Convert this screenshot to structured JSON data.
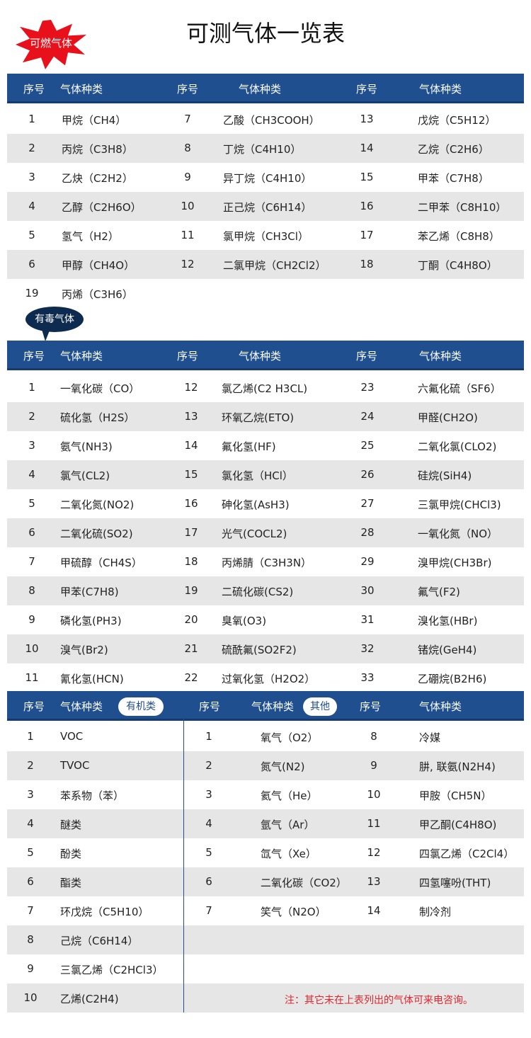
{
  "title": "可测气体一览表",
  "colors": {
    "header": "#1f4f8e",
    "stripe": "#e6e6e6",
    "badge_red": "#e8101a",
    "bubble": "#0d2a4f",
    "note": "#e0262e"
  },
  "header_labels": {
    "num": "序号",
    "name": "气体种类"
  },
  "combustible": {
    "badge": "可燃气体",
    "rows": [
      [
        "1",
        "甲烷（CH4）",
        "7",
        "乙酸（CH3COOH）",
        "13",
        "戊烷（C5H12）"
      ],
      [
        "2",
        "丙烷（C3H8）",
        "8",
        "丁烷（C4H10）",
        "14",
        "乙烷（C2H6）"
      ],
      [
        "3",
        "乙炔（C2H2）",
        "9",
        "异丁烷（C4H10）",
        "15",
        "甲苯（C7H8）"
      ],
      [
        "4",
        "乙醇（C2H6O）",
        "10",
        "正己烷（C6H14）",
        "16",
        "二甲苯（C8H10）"
      ],
      [
        "5",
        "氢气（H2）",
        "11",
        "氯甲烷（CH3Cl）",
        "17",
        "苯乙烯（C8H8）"
      ],
      [
        "6",
        "甲醇（CH4O）",
        "12",
        "二氯甲烷（CH2Cl2）",
        "18",
        "丁酮（C4H8O）"
      ],
      [
        "19",
        "丙烯（C3H6）",
        "",
        "",
        "",
        ""
      ]
    ]
  },
  "toxic": {
    "badge": "有毒气体",
    "rows": [
      [
        "1",
        "一氧化碳（CO）",
        "12",
        "氯乙烯(C2 H3CL)",
        "23",
        "六氟化硫（SF6）"
      ],
      [
        "2",
        "硫化氢（H2S）",
        "13",
        "环氧乙烷(ETO)",
        "24",
        "甲醛(CH2O)"
      ],
      [
        "3",
        "氨气(NH3)",
        "14",
        "氟化氢(HF)",
        "25",
        "二氧化氯(CLO2)"
      ],
      [
        "4",
        "氯气(CL2)",
        "15",
        "氯化氢（HCl）",
        "26",
        "硅烷(SiH4)"
      ],
      [
        "5",
        "二氧化氮(NO2)",
        "16",
        "砷化氢(AsH3)",
        "27",
        "三氯甲烷(CHCl3)"
      ],
      [
        "6",
        "二氧化硫(SO2)",
        "17",
        "光气(COCL2)",
        "28",
        "一氧化氮（NO）"
      ],
      [
        "7",
        "甲硫醇（CH4S）",
        "18",
        "丙烯腈（C3H3N）",
        "29",
        "溴甲烷(CH3Br)"
      ],
      [
        "8",
        "甲苯(C7H8)",
        "19",
        "二硫化碳(CS2)",
        "30",
        "氟气(F2)"
      ],
      [
        "9",
        "磷化氢(PH3)",
        "20",
        "臭氧(O3)",
        "31",
        "溴化氢(HBr)"
      ],
      [
        "10",
        "溴气(Br2)",
        "21",
        "硫酰氟(SO2F2)",
        "32",
        "锗烷(GeH4)"
      ],
      [
        "11",
        "氰化氢(HCN)",
        "22",
        "过氧化氢（H2O2）",
        "33",
        "乙硼烷(B2H6)"
      ]
    ]
  },
  "organic_badge": "有机类",
  "other_badge": "其他",
  "bottom": {
    "rows": [
      [
        "1",
        "VOC",
        "1",
        "氧气（O2）",
        "8",
        "冷媒"
      ],
      [
        "2",
        "TVOC",
        "2",
        "氮气(N2)",
        "9",
        "肼, 联氨(N2H4)"
      ],
      [
        "3",
        "苯系物（苯）",
        "3",
        "氦气（He）",
        "10",
        "甲胺（CH5N）"
      ],
      [
        "4",
        "醚类",
        "4",
        "氩气（Ar）",
        "11",
        "甲乙酮(C4H8O)"
      ],
      [
        "5",
        "酚类",
        "5",
        "氙气（Xe）",
        "12",
        "四氯乙烯（C2Cl4）"
      ],
      [
        "6",
        "酯类",
        "6",
        "二氧化碳（CO2）",
        "13",
        "四氢噻吩(THT)"
      ],
      [
        "7",
        "环戊烷（C5H10）",
        "7",
        "笑气（N2O）",
        "14",
        "制冷剂"
      ],
      [
        "8",
        "己烷（C6H14）",
        "",
        "",
        "",
        ""
      ],
      [
        "9",
        "三氯乙烯（C2HCl3）",
        "",
        "",
        "",
        ""
      ],
      [
        "10",
        "乙烯(C2H4)",
        "",
        "",
        "",
        ""
      ]
    ]
  },
  "note": "注：其它未在上表列出的气体可来电咨询。"
}
